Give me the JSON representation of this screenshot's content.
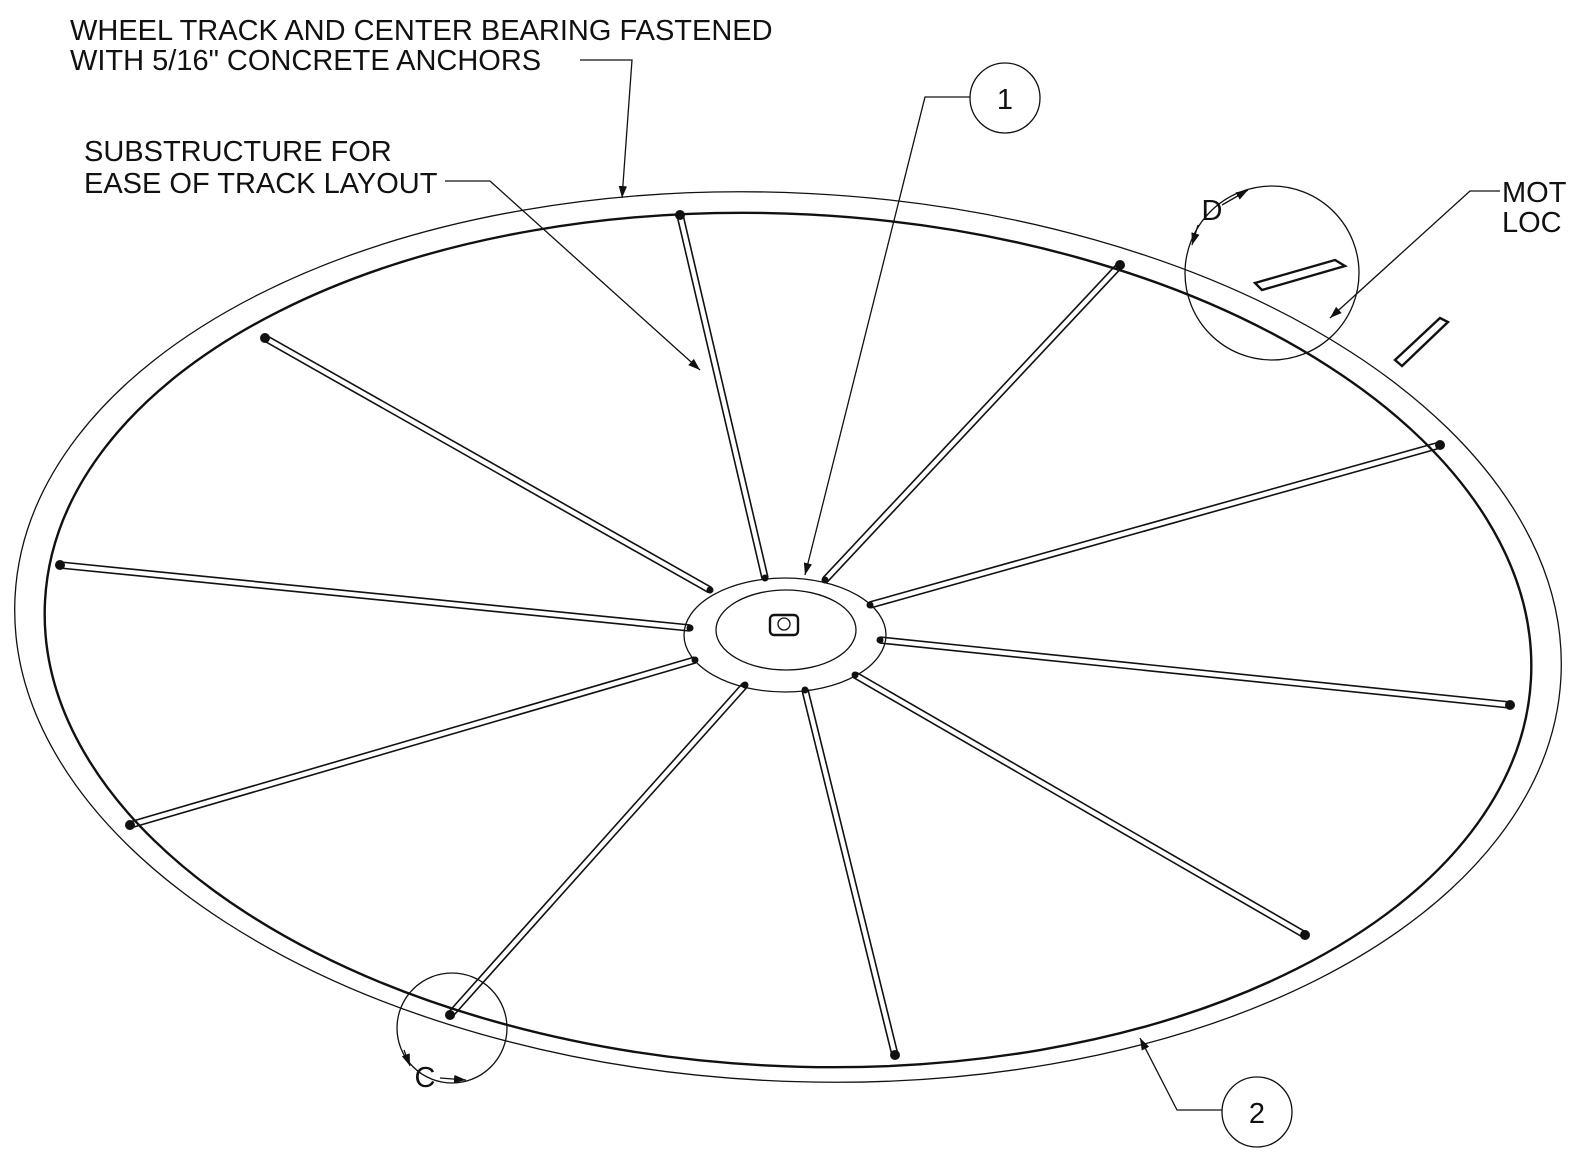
{
  "notes": [
    {
      "lines": [
        "WHEEL TRACK AND CENTER BEARING FASTENED",
        "WITH 5/16\" CONCRETE ANCHORS"
      ]
    },
    {
      "lines": [
        "SUBSTRUCTURE FOR",
        "EASE OF TRACK LAYOUT"
      ]
    },
    {
      "lines": [
        "MOT",
        "LOC"
      ]
    }
  ],
  "balloons": [
    "1",
    "2"
  ],
  "details": [
    "D",
    "C"
  ]
}
